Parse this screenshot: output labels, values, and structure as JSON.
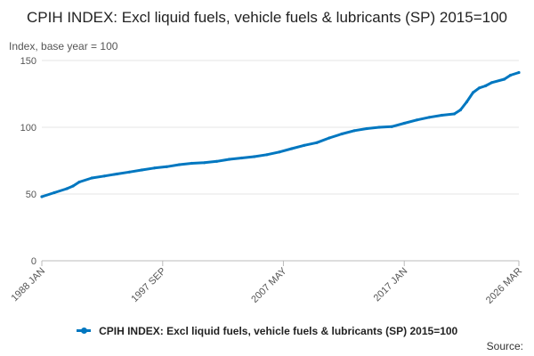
{
  "title": "CPIH INDEX: Excl liquid fuels, vehicle fuels & lubricants (SP) 2015=100",
  "y_unit_label": "Index, base year = 100",
  "legend": {
    "label": "CPIH INDEX: Excl liquid fuels, vehicle fuels & lubricants (SP) 2015=100"
  },
  "source_label": "Source:",
  "colors": {
    "series": "#0077c0",
    "grid": "#e6e6e6",
    "axis": "#bbbbbb"
  },
  "chart_data": {
    "type": "line",
    "title": "CPIH INDEX: Excl liquid fuels, vehicle fuels & lubricants (SP) 2015=100",
    "ylabel": "Index, base year = 100",
    "xlabel": "",
    "ylim": [
      0,
      150
    ],
    "yticks": [
      0,
      50,
      100,
      150
    ],
    "xlim": [
      1988.0,
      2026.17
    ],
    "xticks": [
      {
        "label": "1988 JAN",
        "value": 1988.0
      },
      {
        "label": "1997 SEP",
        "value": 1997.67
      },
      {
        "label": "2007 MAY",
        "value": 2007.33
      },
      {
        "label": "2017 JAN",
        "value": 2017.0
      },
      {
        "label": "2026 MAR",
        "value": 2026.17
      }
    ],
    "grid": true,
    "legend_position": "bottom",
    "series": [
      {
        "name": "CPIH INDEX: Excl liquid fuels, vehicle fuels & lubricants (SP) 2015=100",
        "x": [
          1988.0,
          1989.0,
          1990.0,
          1990.5,
          1991.0,
          1992.0,
          1993.0,
          1994.0,
          1995.0,
          1996.0,
          1997.0,
          1998.0,
          1999.0,
          2000.0,
          2001.0,
          2002.0,
          2003.0,
          2004.0,
          2005.0,
          2006.0,
          2007.0,
          2008.0,
          2009.0,
          2010.0,
          2011.0,
          2012.0,
          2013.0,
          2014.0,
          2015.0,
          2016.0,
          2017.0,
          2018.0,
          2019.0,
          2020.0,
          2021.0,
          2021.5,
          2022.0,
          2022.5,
          2023.0,
          2023.5,
          2024.0,
          2025.0,
          2025.5,
          2026.17
        ],
        "values": [
          48,
          51,
          54,
          56,
          59,
          62,
          63.5,
          65,
          66.5,
          68,
          69.5,
          70.5,
          72,
          73,
          73.5,
          74.5,
          76,
          77,
          78,
          79.5,
          81.5,
          84,
          86.5,
          88.5,
          92,
          95,
          97.5,
          99,
          100,
          100.5,
          103,
          105.5,
          107.5,
          109,
          110,
          113,
          119,
          126,
          129.5,
          131,
          133.5,
          136,
          139,
          141
        ]
      }
    ]
  }
}
